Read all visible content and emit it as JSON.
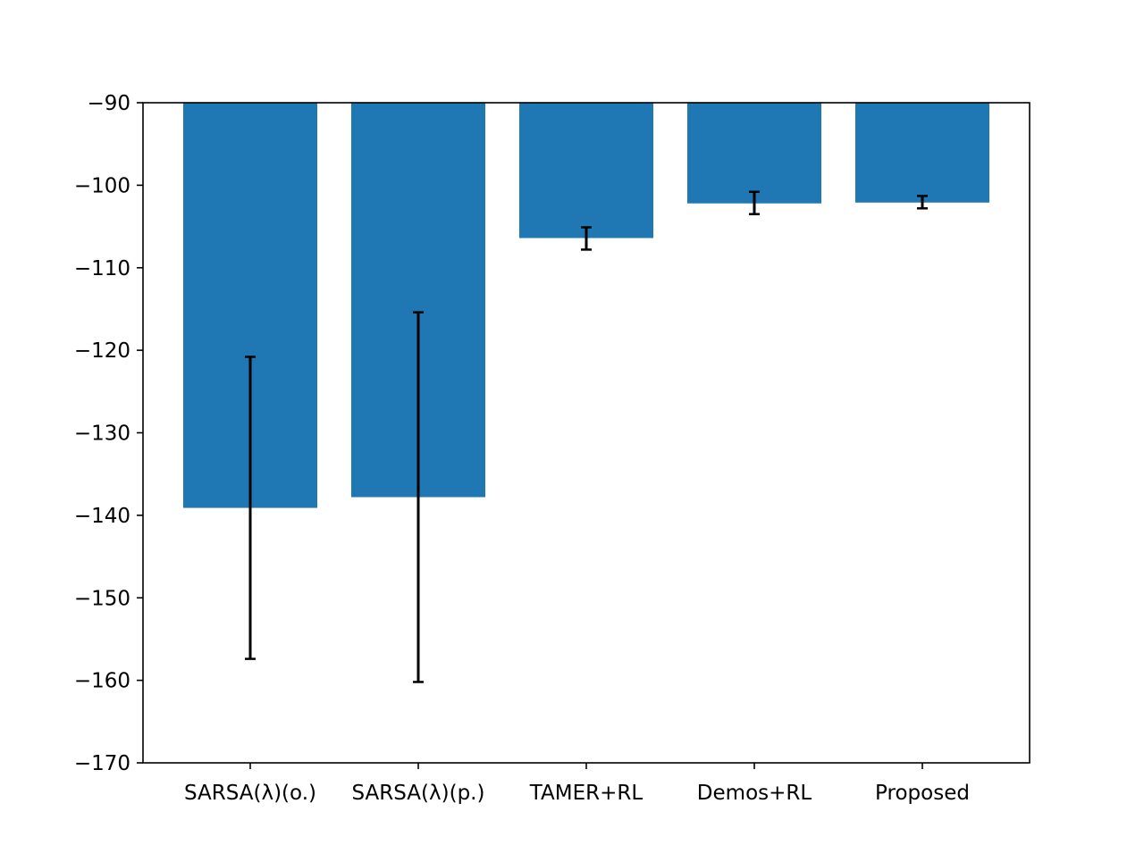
{
  "chart_data": {
    "type": "bar",
    "title": "",
    "xlabel": "",
    "ylabel": "",
    "categories": [
      "SARSA(λ)(o.)",
      "SARSA(λ)(p.)",
      "TAMER+RL",
      "Demos+RL",
      "Proposed"
    ],
    "values": [
      -139.1,
      -137.8,
      -106.4,
      -102.2,
      -102.1
    ],
    "error_low": [
      -157.4,
      -160.2,
      -107.8,
      -103.5,
      -102.8
    ],
    "error_high": [
      -120.8,
      -115.4,
      -105.1,
      -100.8,
      -101.3
    ],
    "ylim": [
      -170,
      -90
    ],
    "yticks": [
      -90,
      -100,
      -110,
      -120,
      -130,
      -140,
      -150,
      -160,
      -170
    ],
    "ytick_labels": [
      "−90",
      "−100",
      "−110",
      "−120",
      "−130",
      "−140",
      "−150",
      "−160",
      "−170"
    ],
    "bar_color": "#1f77b4",
    "error_color": "#000000",
    "grid": false,
    "legend": "none"
  }
}
